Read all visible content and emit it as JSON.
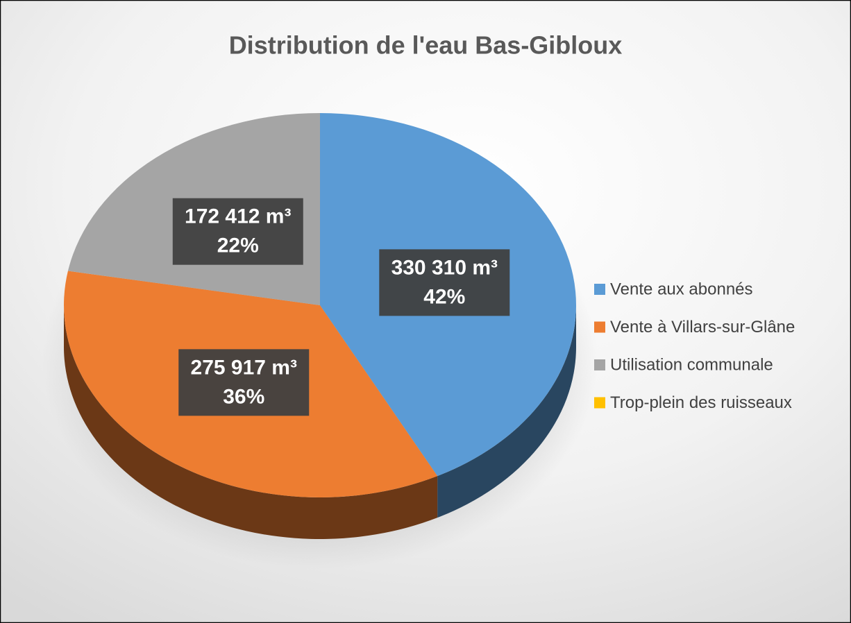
{
  "chart_data": {
    "type": "pie",
    "title": "Distribution de l'eau Bas-Gibloux",
    "categories": [
      "Vente aux abonnés",
      "Vente à Villars-sur-Glâne",
      "Utilisation communale",
      "Trop-plein des ruisseaux"
    ],
    "values": [
      330310,
      275917,
      172412,
      0
    ],
    "value_labels": [
      "330 310 m³",
      "275 917 m³",
      "172 412 m³",
      null
    ],
    "percent_labels": [
      "42%",
      "36%",
      "22%",
      null
    ],
    "colors": [
      "#5b9bd5",
      "#ed7d31",
      "#a5a5a5",
      "#ffc000"
    ],
    "legend": "right"
  }
}
